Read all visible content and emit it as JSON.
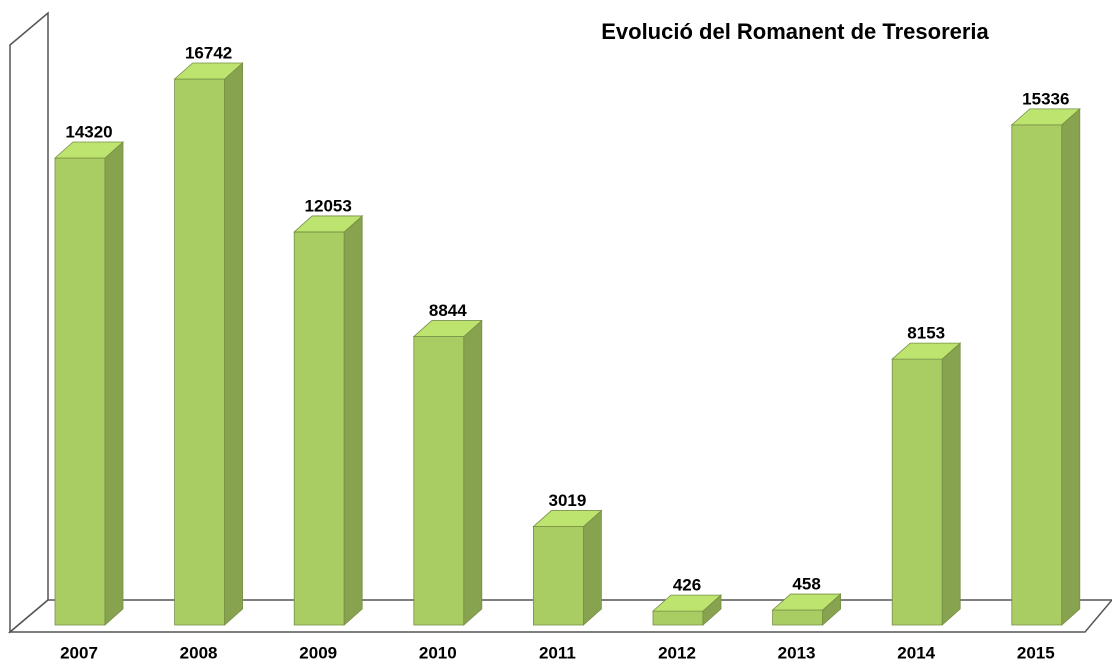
{
  "chart_data": {
    "type": "bar",
    "title": "Evolució del Romanent de Tresoreria",
    "categories": [
      "2007",
      "2008",
      "2009",
      "2010",
      "2011",
      "2012",
      "2013",
      "2014",
      "2015"
    ],
    "values": [
      14320,
      16742,
      12053,
      8844,
      3019,
      426,
      458,
      8153,
      15336
    ],
    "color": "#a9cc63"
  }
}
